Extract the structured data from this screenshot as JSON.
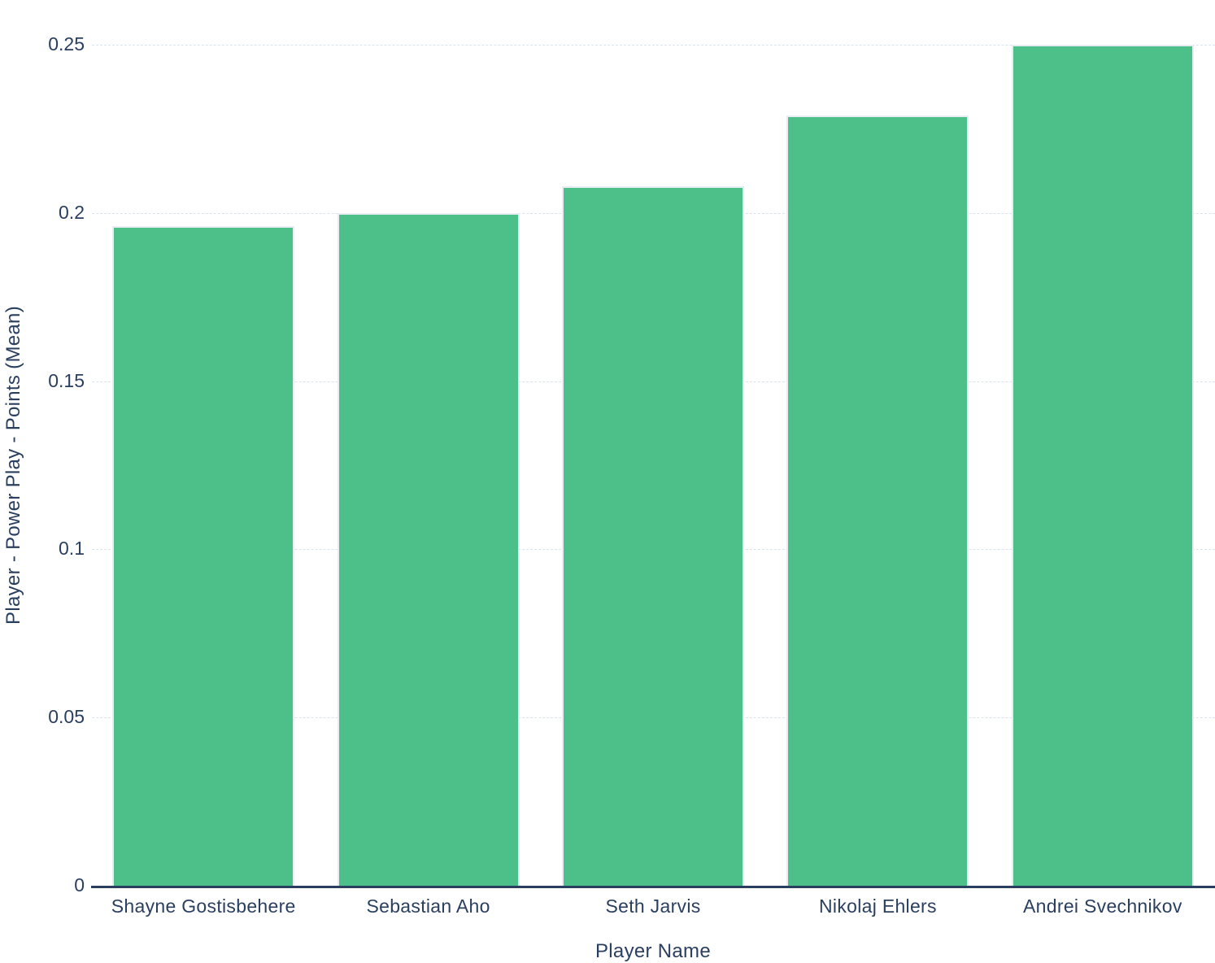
{
  "chart_data": {
    "type": "bar",
    "title": "",
    "categories": [
      "Shayne Gostisbehere",
      "Sebastian Aho",
      "Seth Jarvis",
      "Nikolaj Ehlers",
      "Andrei Svechnikov"
    ],
    "values": [
      0.196,
      0.2,
      0.208,
      0.229,
      0.25
    ],
    "xlabel": "Player Name",
    "ylabel": "Player - Power Play - Points (Mean)",
    "ylim": [
      0,
      0.25
    ],
    "yticks": [
      {
        "value": 0,
        "label": "0"
      },
      {
        "value": 0.05,
        "label": "0.05"
      },
      {
        "value": 0.1,
        "label": "0.1"
      },
      {
        "value": 0.15,
        "label": "0.15"
      },
      {
        "value": 0.2,
        "label": "0.2"
      },
      {
        "value": 0.25,
        "label": "0.25"
      }
    ],
    "grid": true,
    "legend": "none",
    "colors": {
      "bar_fill": "#4DC08A",
      "bar_border": "#E7EDF2",
      "text": "#2A3F5F",
      "gridline": "#D9E4F0",
      "axis_line": "#2A3F5F",
      "background": "#FFFFFF"
    }
  }
}
